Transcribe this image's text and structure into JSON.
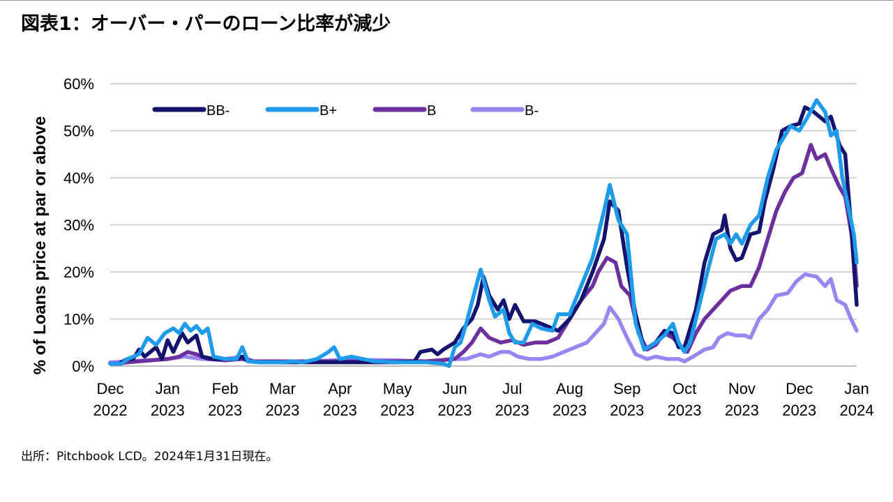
{
  "title": "図表1：オーバー・パーのローン比率が減少",
  "footnote": "出所：Pitchbook LCD。2024年1月31日現在。",
  "chart_data": {
    "type": "line",
    "ylabel": "% of Loans price at par or above",
    "xlabel": "",
    "ylim": [
      0,
      60
    ],
    "y_ticks": [
      "0%",
      "10%",
      "20%",
      "30%",
      "40%",
      "50%",
      "60%"
    ],
    "x_ticks": [
      {
        "month": "Dec",
        "year": "2022"
      },
      {
        "month": "Jan",
        "year": "2023"
      },
      {
        "month": "Feb",
        "year": "2023"
      },
      {
        "month": "Mar",
        "year": "2023"
      },
      {
        "month": "Apr",
        "year": "2023"
      },
      {
        "month": "May",
        "year": "2023"
      },
      {
        "month": "Jun",
        "year": "2023"
      },
      {
        "month": "Jul",
        "year": "2023"
      },
      {
        "month": "Aug",
        "year": "2023"
      },
      {
        "month": "Sep",
        "year": "2023"
      },
      {
        "month": "Oct",
        "year": "2023"
      },
      {
        "month": "Nov",
        "year": "2023"
      },
      {
        "month": "Dec",
        "year": "2023"
      },
      {
        "month": "Jan",
        "year": "2024"
      }
    ],
    "x_unit": "months since Dec 2022 (0 = Dec 2022, 13 = Jan 2024)",
    "legend_position": "top",
    "series": [
      {
        "name": "BB-",
        "color": "#14146e",
        "points": [
          [
            0,
            0.5
          ],
          [
            0.15,
            0.5
          ],
          [
            0.3,
            1.5
          ],
          [
            0.4,
            1.5
          ],
          [
            0.5,
            3.5
          ],
          [
            0.6,
            2
          ],
          [
            0.8,
            4
          ],
          [
            0.9,
            1.5
          ],
          [
            1.0,
            5.5
          ],
          [
            1.1,
            3
          ],
          [
            1.25,
            7
          ],
          [
            1.35,
            5
          ],
          [
            1.5,
            6.5
          ],
          [
            1.6,
            2
          ],
          [
            1.8,
            1.5
          ],
          [
            2.0,
            1.5
          ],
          [
            2.2,
            1.5
          ],
          [
            2.3,
            2
          ],
          [
            2.4,
            1
          ],
          [
            2.6,
            0.8
          ],
          [
            3.0,
            0.8
          ],
          [
            3.5,
            0.8
          ],
          [
            4.0,
            0.8
          ],
          [
            4.5,
            0.8
          ],
          [
            5.0,
            0.8
          ],
          [
            5.3,
            1
          ],
          [
            5.4,
            3
          ],
          [
            5.6,
            3.5
          ],
          [
            5.7,
            2.5
          ],
          [
            5.8,
            3.5
          ],
          [
            6.0,
            5
          ],
          [
            6.15,
            8
          ],
          [
            6.3,
            10
          ],
          [
            6.4,
            13
          ],
          [
            6.5,
            19
          ],
          [
            6.6,
            15
          ],
          [
            6.75,
            12
          ],
          [
            6.85,
            14
          ],
          [
            6.95,
            10
          ],
          [
            7.05,
            13
          ],
          [
            7.2,
            9.5
          ],
          [
            7.4,
            9.5
          ],
          [
            7.6,
            8.5
          ],
          [
            7.8,
            7.5
          ],
          [
            8.0,
            10
          ],
          [
            8.2,
            14
          ],
          [
            8.4,
            20
          ],
          [
            8.6,
            27
          ],
          [
            8.7,
            35
          ],
          [
            8.85,
            33
          ],
          [
            9.0,
            21
          ],
          [
            9.15,
            11
          ],
          [
            9.3,
            3.5
          ],
          [
            9.5,
            5
          ],
          [
            9.65,
            7.5
          ],
          [
            9.8,
            7
          ],
          [
            9.9,
            4
          ],
          [
            10.0,
            4
          ],
          [
            10.1,
            8
          ],
          [
            10.2,
            12
          ],
          [
            10.35,
            22
          ],
          [
            10.5,
            28
          ],
          [
            10.65,
            29
          ],
          [
            10.7,
            32
          ],
          [
            10.8,
            25
          ],
          [
            10.9,
            22.5
          ],
          [
            11.0,
            23
          ],
          [
            11.15,
            28
          ],
          [
            11.3,
            28.5
          ],
          [
            11.4,
            35
          ],
          [
            11.55,
            42
          ],
          [
            11.7,
            50
          ],
          [
            11.85,
            51
          ],
          [
            12.0,
            51.5
          ],
          [
            12.1,
            55
          ],
          [
            12.25,
            54
          ],
          [
            12.35,
            53
          ],
          [
            12.45,
            52
          ],
          [
            12.55,
            53
          ],
          [
            12.7,
            47
          ],
          [
            12.8,
            45
          ],
          [
            12.9,
            30
          ],
          [
            13.0,
            13
          ]
        ]
      },
      {
        "name": "B+",
        "color": "#1e9bea",
        "points": [
          [
            0,
            0.5
          ],
          [
            0.2,
            0.5
          ],
          [
            0.3,
            1.5
          ],
          [
            0.5,
            2.5
          ],
          [
            0.65,
            6
          ],
          [
            0.8,
            4.5
          ],
          [
            0.95,
            7
          ],
          [
            1.1,
            8
          ],
          [
            1.2,
            7
          ],
          [
            1.3,
            9
          ],
          [
            1.4,
            7.5
          ],
          [
            1.5,
            8.5
          ],
          [
            1.6,
            7
          ],
          [
            1.7,
            8
          ],
          [
            1.8,
            2
          ],
          [
            2.0,
            1.5
          ],
          [
            2.2,
            1.5
          ],
          [
            2.3,
            4
          ],
          [
            2.4,
            1
          ],
          [
            2.6,
            0.8
          ],
          [
            3.0,
            0.8
          ],
          [
            3.2,
            1
          ],
          [
            3.35,
            0.8
          ],
          [
            3.6,
            1.5
          ],
          [
            3.8,
            3
          ],
          [
            3.9,
            4
          ],
          [
            4.0,
            1.5
          ],
          [
            4.2,
            2
          ],
          [
            4.4,
            1.5
          ],
          [
            4.6,
            1
          ],
          [
            5.0,
            0.8
          ],
          [
            5.5,
            0.8
          ],
          [
            5.8,
            0.5
          ],
          [
            5.9,
            0
          ],
          [
            6.0,
            4
          ],
          [
            6.1,
            5
          ],
          [
            6.2,
            9
          ],
          [
            6.35,
            16
          ],
          [
            6.45,
            20.5
          ],
          [
            6.6,
            14
          ],
          [
            6.7,
            10.5
          ],
          [
            6.85,
            12
          ],
          [
            6.95,
            7
          ],
          [
            7.05,
            5
          ],
          [
            7.2,
            5
          ],
          [
            7.35,
            9
          ],
          [
            7.5,
            8
          ],
          [
            7.7,
            7.5
          ],
          [
            7.8,
            11
          ],
          [
            8.0,
            11
          ],
          [
            8.2,
            17
          ],
          [
            8.4,
            23
          ],
          [
            8.6,
            33
          ],
          [
            8.7,
            38.5
          ],
          [
            8.85,
            31
          ],
          [
            9.0,
            28
          ],
          [
            9.15,
            9
          ],
          [
            9.3,
            3.5
          ],
          [
            9.5,
            5
          ],
          [
            9.65,
            6.5
          ],
          [
            9.8,
            9
          ],
          [
            9.9,
            5
          ],
          [
            10.0,
            3
          ],
          [
            10.1,
            5
          ],
          [
            10.2,
            10
          ],
          [
            10.4,
            20
          ],
          [
            10.55,
            27
          ],
          [
            10.7,
            28
          ],
          [
            10.8,
            26
          ],
          [
            10.9,
            28
          ],
          [
            11.0,
            26
          ],
          [
            11.15,
            30
          ],
          [
            11.3,
            32
          ],
          [
            11.45,
            40
          ],
          [
            11.6,
            46
          ],
          [
            11.7,
            48
          ],
          [
            11.85,
            51
          ],
          [
            12.0,
            50
          ],
          [
            12.15,
            53
          ],
          [
            12.3,
            56.5
          ],
          [
            12.45,
            54
          ],
          [
            12.55,
            49
          ],
          [
            12.65,
            50
          ],
          [
            12.75,
            40
          ],
          [
            12.85,
            34
          ],
          [
            12.95,
            28
          ],
          [
            13.0,
            22
          ]
        ]
      },
      {
        "name": "B",
        "color": "#6b2f9e",
        "points": [
          [
            0,
            0.5
          ],
          [
            0.15,
            0.5
          ],
          [
            0.3,
            0.8
          ],
          [
            0.5,
            1
          ],
          [
            1.0,
            1.5
          ],
          [
            1.2,
            2
          ],
          [
            1.35,
            3
          ],
          [
            1.5,
            2.5
          ],
          [
            1.7,
            1.5
          ],
          [
            2.0,
            1.2
          ],
          [
            2.3,
            1.5
          ],
          [
            2.5,
            1
          ],
          [
            3.0,
            1
          ],
          [
            3.5,
            1
          ],
          [
            4.0,
            1
          ],
          [
            4.5,
            1
          ],
          [
            5.0,
            1
          ],
          [
            5.5,
            1
          ],
          [
            6.0,
            1.5
          ],
          [
            6.15,
            3
          ],
          [
            6.3,
            5
          ],
          [
            6.45,
            8
          ],
          [
            6.6,
            6
          ],
          [
            6.8,
            5
          ],
          [
            7.0,
            5.5
          ],
          [
            7.2,
            4.5
          ],
          [
            7.4,
            5
          ],
          [
            7.6,
            5
          ],
          [
            7.8,
            6
          ],
          [
            8.0,
            10
          ],
          [
            8.2,
            14
          ],
          [
            8.4,
            17
          ],
          [
            8.5,
            20
          ],
          [
            8.65,
            23
          ],
          [
            8.8,
            22
          ],
          [
            8.9,
            17
          ],
          [
            9.05,
            15
          ],
          [
            9.2,
            7
          ],
          [
            9.35,
            3.5
          ],
          [
            9.5,
            4.5
          ],
          [
            9.65,
            7
          ],
          [
            9.8,
            6
          ],
          [
            9.95,
            4
          ],
          [
            10.05,
            3
          ],
          [
            10.2,
            7
          ],
          [
            10.35,
            10
          ],
          [
            10.5,
            12
          ],
          [
            10.65,
            14
          ],
          [
            10.8,
            16
          ],
          [
            11.0,
            17
          ],
          [
            11.15,
            17
          ],
          [
            11.3,
            21
          ],
          [
            11.45,
            27
          ],
          [
            11.6,
            33
          ],
          [
            11.75,
            37
          ],
          [
            11.9,
            40
          ],
          [
            12.05,
            41
          ],
          [
            12.2,
            47
          ],
          [
            12.3,
            44
          ],
          [
            12.45,
            45
          ],
          [
            12.55,
            42
          ],
          [
            12.7,
            38
          ],
          [
            12.8,
            36
          ],
          [
            12.95,
            25
          ],
          [
            13.0,
            17
          ]
        ]
      },
      {
        "name": "B-",
        "color": "#9a86f0",
        "points": [
          [
            0,
            0.8
          ],
          [
            0.3,
            1
          ],
          [
            0.6,
            1.2
          ],
          [
            1.0,
            1.5
          ],
          [
            1.3,
            2
          ],
          [
            1.6,
            1.5
          ],
          [
            2.0,
            1.5
          ],
          [
            2.3,
            2
          ],
          [
            2.5,
            1
          ],
          [
            3.0,
            1
          ],
          [
            3.5,
            1
          ],
          [
            4.0,
            1.3
          ],
          [
            4.5,
            1.3
          ],
          [
            5.0,
            1.2
          ],
          [
            5.5,
            1
          ],
          [
            6.0,
            1.5
          ],
          [
            6.2,
            1.5
          ],
          [
            6.45,
            2.5
          ],
          [
            6.6,
            2
          ],
          [
            6.8,
            3
          ],
          [
            6.95,
            3
          ],
          [
            7.1,
            2
          ],
          [
            7.3,
            1.5
          ],
          [
            7.5,
            1.5
          ],
          [
            7.7,
            2
          ],
          [
            7.9,
            3
          ],
          [
            8.1,
            4
          ],
          [
            8.3,
            5
          ],
          [
            8.45,
            7
          ],
          [
            8.6,
            9
          ],
          [
            8.7,
            12.5
          ],
          [
            8.85,
            10
          ],
          [
            9.0,
            6
          ],
          [
            9.15,
            2.5
          ],
          [
            9.35,
            1.5
          ],
          [
            9.5,
            2
          ],
          [
            9.7,
            1.5
          ],
          [
            9.9,
            1.5
          ],
          [
            10.0,
            1
          ],
          [
            10.15,
            2
          ],
          [
            10.35,
            3.5
          ],
          [
            10.5,
            4
          ],
          [
            10.6,
            6
          ],
          [
            10.75,
            7
          ],
          [
            10.9,
            6.5
          ],
          [
            11.05,
            6.5
          ],
          [
            11.15,
            6
          ],
          [
            11.3,
            10
          ],
          [
            11.45,
            12
          ],
          [
            11.6,
            15
          ],
          [
            11.8,
            15.5
          ],
          [
            11.95,
            18
          ],
          [
            12.1,
            19.5
          ],
          [
            12.3,
            19
          ],
          [
            12.45,
            17
          ],
          [
            12.55,
            18.5
          ],
          [
            12.65,
            14
          ],
          [
            12.8,
            13
          ],
          [
            12.9,
            10
          ],
          [
            13.0,
            7.5
          ]
        ]
      }
    ]
  }
}
